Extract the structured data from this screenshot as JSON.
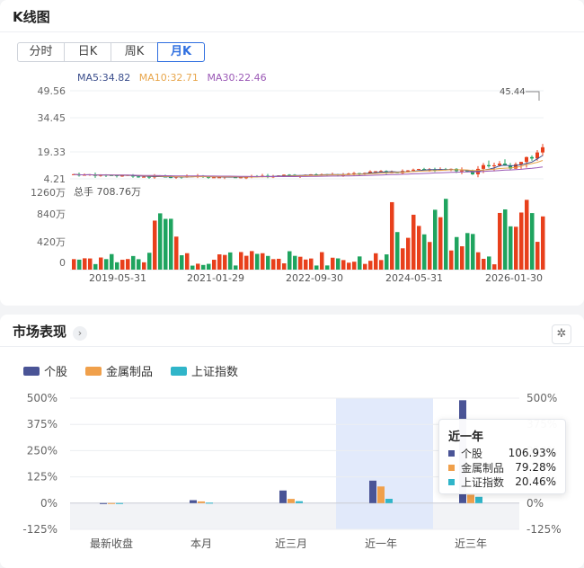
{
  "kline": {
    "title": "K线图",
    "tabs": [
      {
        "label": "分时",
        "active": false
      },
      {
        "label": "日K",
        "active": false
      },
      {
        "label": "周K",
        "active": false
      },
      {
        "label": "月K",
        "active": true
      }
    ],
    "ma5": "MA5:34.82",
    "ma10": "MA10:32.71",
    "ma30": "MA30:22.46",
    "ma_colors": {
      "ma5": "#3b4e8c",
      "ma10": "#e8a64c",
      "ma30": "#9b59b6"
    },
    "price_ticks": [
      "49.56",
      "34.45",
      "19.33",
      "4.21"
    ],
    "max_label": "45.44",
    "volume_label": "总手 708.76万",
    "volume_ticks": [
      "1260万",
      "840万",
      "420万",
      "0"
    ],
    "date_ticks": [
      "2019-05-31",
      "2021-01-29",
      "2022-09-30",
      "2024-05-31",
      "2026-01-30"
    ],
    "up_color": "#e8401c",
    "down_color": "#1fa45f"
  },
  "market": {
    "title": "市场表现",
    "expand_icon": "chevron-right-icon",
    "settings_icon": "settings-icon",
    "legend": [
      {
        "label": "个股",
        "color": "#4a5496"
      },
      {
        "label": "金属制品",
        "color": "#f0a04b"
      },
      {
        "label": "上证指数",
        "color": "#30b5c9"
      }
    ],
    "tooltip": {
      "title": "近一年",
      "rows": [
        {
          "name": "个股",
          "value": "106.93%",
          "color": "#4a5496"
        },
        {
          "name": "金属制品",
          "value": "79.28%",
          "color": "#f0a04b"
        },
        {
          "name": "上证指数",
          "value": "20.46%",
          "color": "#30b5c9"
        }
      ]
    }
  },
  "chart_data": {
    "type": "bar",
    "categories": [
      "最新收盘",
      "本月",
      "近三月",
      "近一年",
      "近三年"
    ],
    "series": [
      {
        "name": "个股",
        "values": [
          -0.5,
          14,
          60,
          106.93,
          490
        ]
      },
      {
        "name": "金属制品",
        "values": [
          0.3,
          8,
          20,
          79.28,
          40
        ]
      },
      {
        "name": "上证指数",
        "values": [
          0.2,
          2,
          9,
          20.46,
          30
        ]
      }
    ],
    "ylim": [
      -125,
      500
    ],
    "yticks": [
      "500%",
      "375%",
      "250%",
      "125%",
      "0%",
      "-125%"
    ],
    "highlight_category": "近一年",
    "grid": true,
    "legend": "top-left"
  }
}
